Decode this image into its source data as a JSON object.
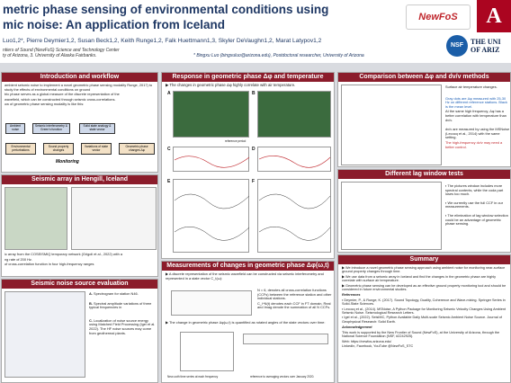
{
  "header": {
    "title_line1": "metric phase sensing of environmental conditions using",
    "title_line2": "mic noise: An application from Iceland",
    "authors": "Luo1,2*, Pierre Deymier1,2, Susan Beck1,2, Keith Runge1,2, Falk Huettmann1,3, Skyler DeVaughn1,2, Marat Latypov1,2",
    "affiliations_line1": "ntiers of Sound (NewFoS) Science and Technology Center",
    "affiliations_line2": "ty of Arizona, 3. University of Alaska Fairbanks.",
    "contact": "* Bingxu Luo (bingxuluo@arizona.edu), Postdoctoral researcher, University of Arizona",
    "logo_newfos": "NewFoS",
    "logo_nsf": "NSF",
    "logo_univ_line1": "THE UNI",
    "logo_univ_line2": "OF ARIZ"
  },
  "intro": {
    "title": "Introduction and workflow",
    "text": [
      "ambient seismic noise to implement a novel geometric phase sensing modality Runge, 2017) to study the effects of environmental conditions on ground",
      "tric phase serves as a global measure of the discrete representation of the",
      "wavefield, which can be constructed through seismic cross-correlations.",
      "ow of geometric phase sensing modality is like this:"
    ],
    "workflow": [
      "Ambient noise",
      "Seismic interferometry & Green's function",
      "Solid state analogy & state vector",
      "Environmental perturbations",
      "Sound property changes",
      "Variations of state vector",
      "Geometric phase changes Δφ",
      "Monitoring"
    ]
  },
  "array": {
    "title": "Seismic array in Hengill, Iceland",
    "text": [
      "ic array from the COSEISMIQ temporary network (Grigoli et al., 2022) with a",
      "ng rate of 200 Hz.",
      "of cross-correlation function in four high-frequency ranges"
    ]
  },
  "noise": {
    "title": "Seismic noise source evaluation",
    "labels": [
      "A.",
      "B.",
      "C."
    ],
    "text": [
      "Spectrogram for station N46.",
      "Spectral amplitude variations of three typical frequencies in",
      "Localization of noise source energy using Matched Field Processing (Igel et al. 2022). The HF noise sources may come from geothermal plants."
    ]
  },
  "response": {
    "title": "Response in geometric phase Δφ and temperature",
    "text": [
      "The changes in geometric phase Δφ highly correlate with air temperature.",
      "reference period"
    ],
    "labels": [
      "A",
      "B",
      "C",
      "D",
      "E",
      "F"
    ]
  },
  "measurement": {
    "title": "Measurements of changes in geometric phase Δφ(ω,t)",
    "text": [
      "A discrete representation of the seismic wavefield can be constructed via seismic interferometry and represented in a state vector C_t(ω):",
      "N = 6, denotes all cross-correlation functions (CCFs) between the reference station and other individual stations.",
      "C_i^N(t) denotes each CCF in FT domain. Real and Imag denote the summation of all N CCFs.",
      "The change in geometric phase Δφ(ω,t) is quantified as rotated angles of the state vectors over time:",
      "New-ooth time series at each frequency",
      "reference to averaging vectors over January 2020."
    ]
  },
  "comparison": {
    "title": "Comparison between Δφ and dv/v methods",
    "text": [
      "Surface air temperature changes.",
      "Gray dots are Δφ measured with 25-30 Hz on different reference stations. Black is the mean level.",
      "At the same high frequency, Δφ has a better correlation with temperature than dv/v.",
      "dv/v are measured by using the MSNoise (Lecocq et al., 2014) with the same setting.",
      "The high-frequency dv/v may need a better control."
    ]
  },
  "lag": {
    "title": "Different lag window tests",
    "text": [
      "The pictures window includes more spectral contents, while the coda part loses too much.",
      "We currently use the full CCF in our measurements.",
      "The elimination of lag window selection could be an advantage of geometric phase sensing."
    ]
  },
  "summary": {
    "title": "Summary",
    "points": [
      "We introduce a novel geometric phase sensing approach using ambient noise for monitoring near-surface ground property changes through time.",
      "We use data from a seismic array in Iceland and find the changes in the geometric phase are highly correlate with surface air temperature.",
      "Geometric phase sensing can be developed as an effective ground property monitoring tool and should be considered in future environmental studies."
    ],
    "references_title": "References",
    "references": [
      "Deymier, P., & Runge, K. (2017). Sound Topology, Duality, Coherence and Wave-mixing. Springer Series in Solid-State Sciences.",
      "Lecocq et al., (2014). MSNoise, A Python Package for Monitoring Seismic Velocity Changes Using Ambient Seismic Noise. Seismological Research Letters.",
      "Igel et al., (2022). SeisMIC, Python Available Daily Multi-scale Seismic Ambient Noise Source. Journal of Geophysical Research: Solid Earth."
    ],
    "acknowledgement_title": "Acknowledgement",
    "acknowledgement": "This work is supported by the New Frontier of Sound (NewFoS), at the University of Arizona, through the National Science Foundation (NSF, #2242925).",
    "links": [
      "Web: https://newfos.arizona.edu/",
      "LinkedIn, Facebook, YouTube @NewFoS_STC"
    ]
  }
}
